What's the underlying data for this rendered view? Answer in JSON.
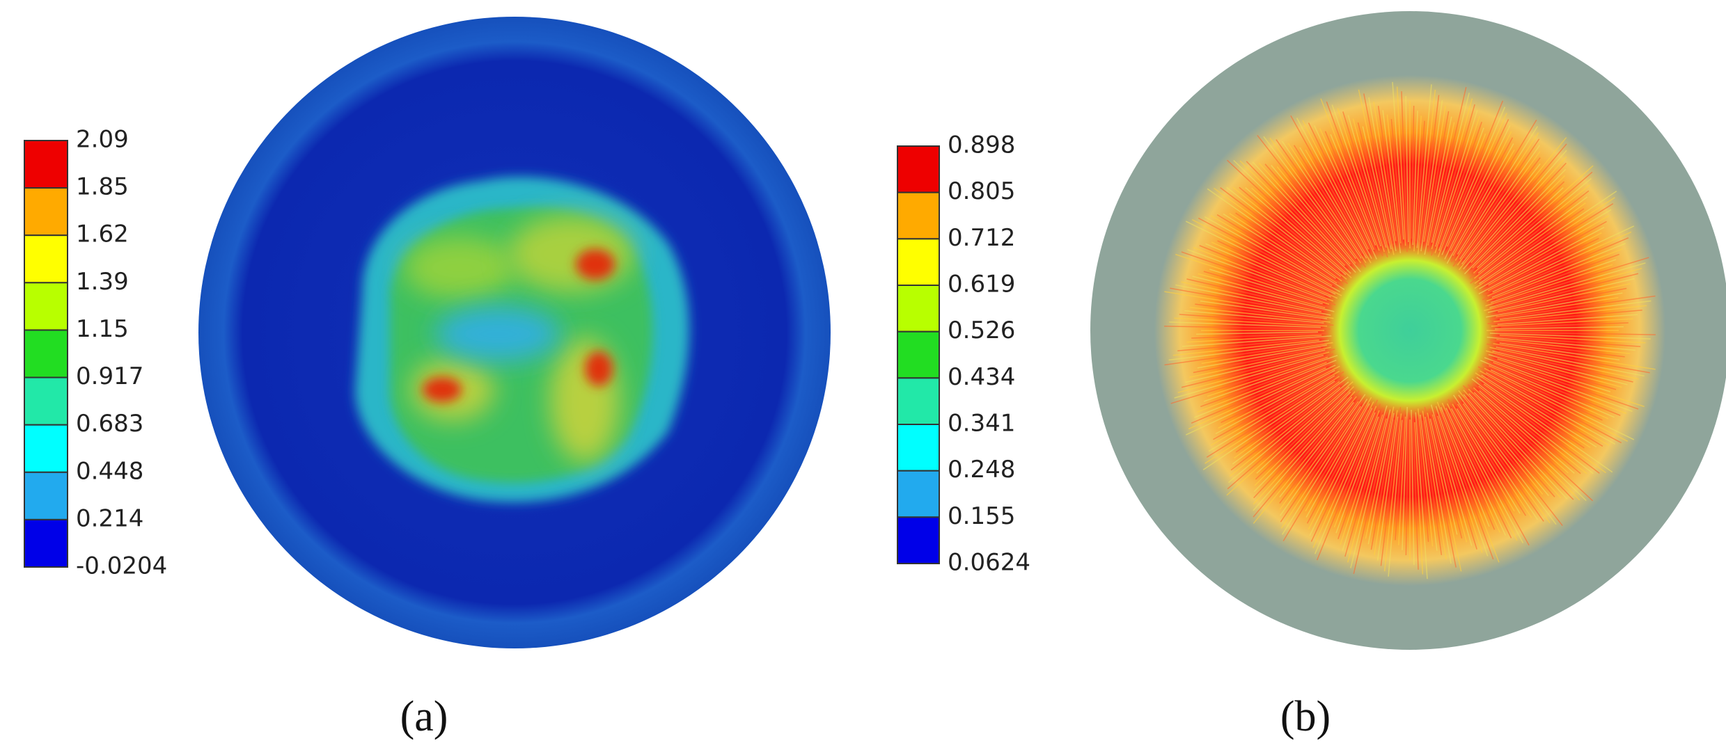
{
  "panel_a": {
    "legend": {
      "labels": [
        "2.09",
        "1.85",
        "1.62",
        "1.39",
        "1.15",
        "0.917",
        "0.683",
        "0.448",
        "0.214",
        "-0.0204"
      ]
    },
    "caption": "(a)"
  },
  "panel_b": {
    "legend": {
      "labels": [
        "0.898",
        "0.805",
        "0.712",
        "0.619",
        "0.526",
        "0.434",
        "0.341",
        "0.248",
        "0.155",
        "0.0624"
      ]
    },
    "caption": "(b)"
  }
}
